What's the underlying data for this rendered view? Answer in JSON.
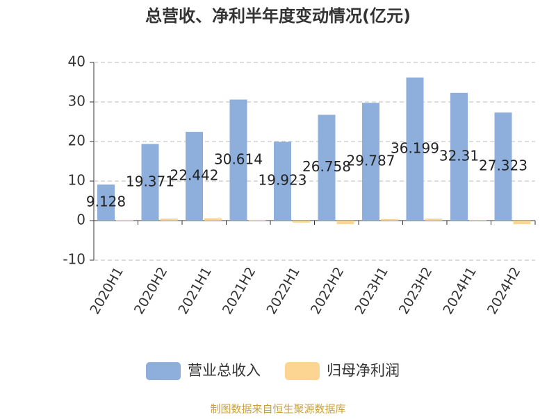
{
  "chart_data": {
    "type": "bar",
    "title": "总营收、净利半年度变动情况(亿元)",
    "categories": [
      "2020H1",
      "2020H2",
      "2021H1",
      "2021H2",
      "2022H1",
      "2022H2",
      "2023H1",
      "2023H2",
      "2024H1",
      "2024H2"
    ],
    "series": [
      {
        "name": "营业总收入",
        "color": "#8eaedc",
        "values": [
          9.128,
          19.371,
          22.442,
          30.614,
          19.923,
          26.758,
          29.787,
          36.199,
          32.31,
          27.323
        ]
      },
      {
        "name": "归母净利润",
        "color": "#fdd592",
        "values": [
          0.1,
          0.5,
          0.6,
          0.1,
          -0.5,
          -0.9,
          0.4,
          0.5,
          0.2,
          -0.9
        ]
      }
    ],
    "ylim": [
      -10,
      40
    ],
    "yticks": [
      -10,
      0,
      10,
      20,
      30,
      40
    ],
    "grid": true,
    "footer": "制图数据来自恒生聚源数据库"
  }
}
